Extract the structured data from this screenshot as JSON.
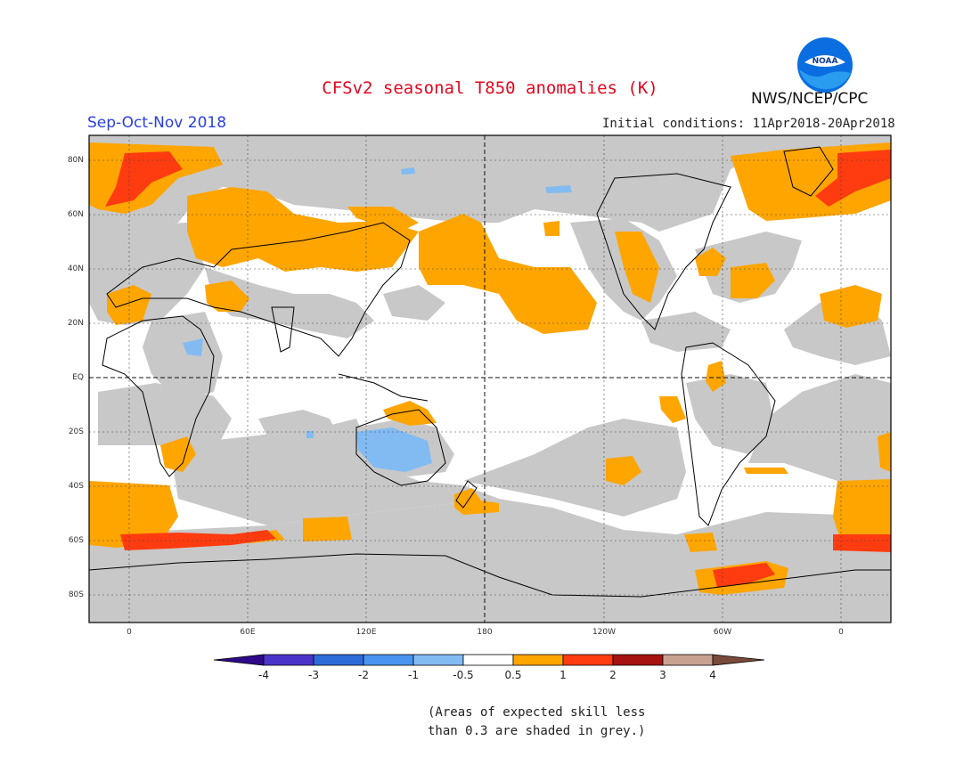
{
  "header": {
    "title": "CFSv2 seasonal T850 anomalies (K)",
    "season": "Sep-Oct-Nov 2018",
    "initial_conditions": "Initial conditions: 11Apr2018-20Apr2018",
    "agency": "NWS/NCEP/CPC",
    "logo_text": "NOAA"
  },
  "map": {
    "projection": "equirectangular",
    "lat_labels": [
      "80N",
      "60N",
      "40N",
      "20N",
      "EQ",
      "20S",
      "40S",
      "60S",
      "80S"
    ],
    "lon_labels": [
      "0",
      "60E",
      "120E",
      "180",
      "120W",
      "60W",
      "0"
    ],
    "colors": {
      "grey_low_skill": "#c8c8c8",
      "ocean_land_neutral": "#ffffff",
      "anom_0_5_to_1": "#ffa500",
      "anom_1_to_2": "#ff3b10",
      "anom_minus1_to_minus0_5": "#82bbf2",
      "coastline": "#000000"
    }
  },
  "colorbar": {
    "labels": [
      "-4",
      "-3",
      "-2",
      "-1",
      "-0.5",
      "0.5",
      "1",
      "2",
      "3",
      "4"
    ],
    "colors": [
      "#2e0a8a",
      "#4a35c8",
      "#2d6cd8",
      "#4b94ee",
      "#82bbf2",
      "#ffffff",
      "#ffa500",
      "#ff3b10",
      "#a5120f",
      "#c9a190",
      "#7a4a3a"
    ]
  },
  "footnote": {
    "line1": "(Areas of expected skill less",
    "line2": "than 0.3 are shaded in grey.)"
  }
}
